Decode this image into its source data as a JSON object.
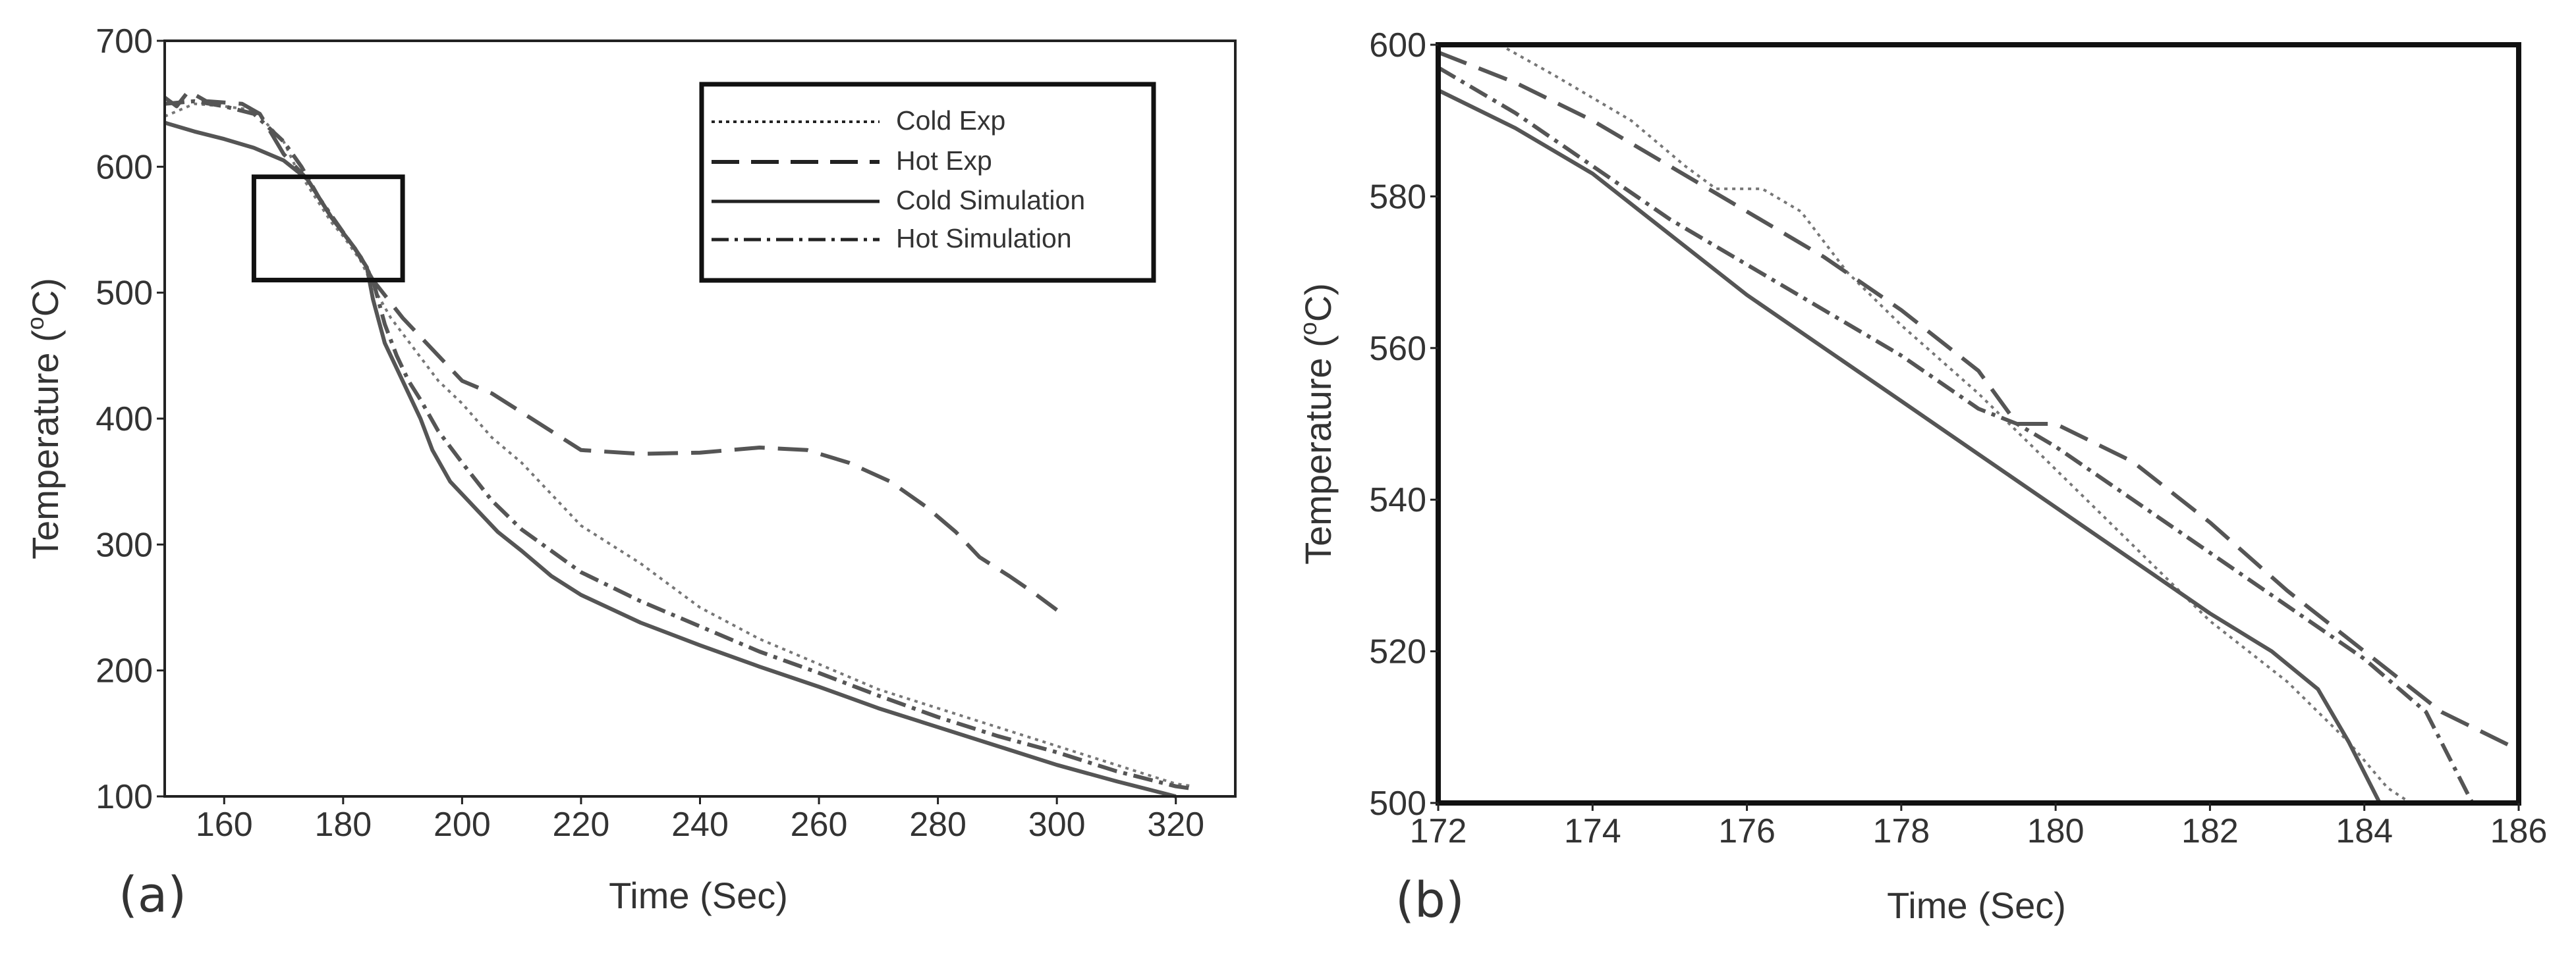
{
  "chart_data": [
    {
      "type": "line",
      "panel_label": "(a)",
      "xlabel": "Time (Sec)",
      "ylabel": "Temperature (°C)",
      "ylabel_parts": {
        "main": "Temperature (",
        "sup": "o",
        "unit": "C)"
      },
      "xlim": [
        150,
        330
      ],
      "ylim": [
        100,
        700
      ],
      "xticks": [
        "160",
        "180",
        "200",
        "220",
        "240",
        "260",
        "280",
        "300",
        "320"
      ],
      "yticks": [
        "100",
        "200",
        "300",
        "400",
        "500",
        "600",
        "700"
      ],
      "legend": {
        "position": "top-right",
        "entries": [
          "Cold Exp",
          "Hot Exp",
          "Cold Simulation",
          "Hot Simulation"
        ]
      },
      "zoom_box": {
        "x": [
          165,
          190
        ],
        "y": [
          510,
          592
        ]
      },
      "series": [
        {
          "name": "Cold Exp",
          "style": "dotted",
          "points": [
            [
              150,
              640
            ],
            [
              155,
              650
            ],
            [
              160,
              648
            ],
            [
              165,
              645
            ],
            [
              170,
              620
            ],
            [
              172,
              600
            ],
            [
              175,
              578
            ],
            [
              178,
              556
            ],
            [
              180,
              545
            ],
            [
              183,
              525
            ],
            [
              185,
              505
            ],
            [
              188,
              480
            ],
            [
              192,
              455
            ],
            [
              196,
              430
            ],
            [
              200,
              412
            ],
            [
              205,
              385
            ],
            [
              210,
              365
            ],
            [
              215,
              340
            ],
            [
              220,
              315
            ],
            [
              230,
              285
            ],
            [
              240,
              250
            ],
            [
              250,
              225
            ],
            [
              260,
              205
            ],
            [
              270,
              185
            ],
            [
              280,
              170
            ],
            [
              290,
              155
            ],
            [
              300,
              140
            ],
            [
              310,
              125
            ],
            [
              320,
              110
            ],
            [
              323,
              108
            ]
          ]
        },
        {
          "name": "Hot Exp",
          "style": "dashed",
          "points": [
            [
              150,
              655
            ],
            [
              152,
              648
            ],
            [
              154,
              660
            ],
            [
              157,
              652
            ],
            [
              163,
              650
            ],
            [
              166,
              642
            ],
            [
              170,
              610
            ],
            [
              174,
              590
            ],
            [
              178,
              560
            ],
            [
              182,
              535
            ],
            [
              185,
              510
            ],
            [
              190,
              480
            ],
            [
              195,
              455
            ],
            [
              200,
              430
            ],
            [
              205,
              420
            ],
            [
              210,
              405
            ],
            [
              215,
              390
            ],
            [
              220,
              375
            ],
            [
              230,
              372
            ],
            [
              240,
              373
            ],
            [
              250,
              377
            ],
            [
              258,
              375
            ],
            [
              265,
              365
            ],
            [
              272,
              350
            ],
            [
              278,
              330
            ],
            [
              283,
              310
            ],
            [
              287,
              290
            ],
            [
              292,
              275
            ],
            [
              296,
              262
            ],
            [
              300,
              248
            ]
          ]
        },
        {
          "name": "Cold Simulation",
          "style": "solid",
          "points": [
            [
              150,
              635
            ],
            [
              155,
              628
            ],
            [
              160,
              622
            ],
            [
              165,
              615
            ],
            [
              170,
              605
            ],
            [
              174,
              590
            ],
            [
              178,
              560
            ],
            [
              182,
              535
            ],
            [
              184,
              520
            ],
            [
              185,
              495
            ],
            [
              187,
              460
            ],
            [
              189,
              440
            ],
            [
              191,
              420
            ],
            [
              193,
              400
            ],
            [
              195,
              375
            ],
            [
              198,
              350
            ],
            [
              202,
              330
            ],
            [
              206,
              310
            ],
            [
              210,
              295
            ],
            [
              215,
              275
            ],
            [
              220,
              260
            ],
            [
              230,
              238
            ],
            [
              240,
              220
            ],
            [
              250,
              203
            ],
            [
              260,
              187
            ],
            [
              270,
              170
            ],
            [
              280,
              155
            ],
            [
              290,
              140
            ],
            [
              300,
              125
            ],
            [
              310,
              112
            ],
            [
              320,
              100
            ]
          ]
        },
        {
          "name": "Hot Simulation",
          "style": "dashdot",
          "points": [
            [
              150,
              650
            ],
            [
              155,
              652
            ],
            [
              160,
              648
            ],
            [
              165,
              642
            ],
            [
              170,
              620
            ],
            [
              173,
              600
            ],
            [
              176,
              575
            ],
            [
              180,
              548
            ],
            [
              183,
              528
            ],
            [
              185,
              510
            ],
            [
              187,
              475
            ],
            [
              189,
              450
            ],
            [
              191,
              430
            ],
            [
              193,
              415
            ],
            [
              196,
              390
            ],
            [
              200,
              365
            ],
            [
              205,
              335
            ],
            [
              210,
              312
            ],
            [
              215,
              295
            ],
            [
              220,
              278
            ],
            [
              230,
              255
            ],
            [
              240,
              235
            ],
            [
              250,
              215
            ],
            [
              260,
              198
            ],
            [
              270,
              180
            ],
            [
              280,
              163
            ],
            [
              290,
              148
            ],
            [
              300,
              135
            ],
            [
              310,
              120
            ],
            [
              320,
              108
            ],
            [
              323,
              106
            ]
          ]
        }
      ]
    },
    {
      "type": "line",
      "panel_label": "(b)",
      "xlabel": "Time (Sec)",
      "ylabel": "Temperature (°C)",
      "ylabel_parts": {
        "main": "Temperature (",
        "sup": "o",
        "unit": "C)"
      },
      "xlim": [
        172,
        186
      ],
      "ylim": [
        500,
        600
      ],
      "xticks": [
        "172",
        "174",
        "176",
        "178",
        "180",
        "182",
        "184",
        "186"
      ],
      "yticks": [
        "500",
        "520",
        "540",
        "560",
        "580",
        "600"
      ],
      "series": [
        {
          "name": "Cold Exp",
          "style": "dotted",
          "points": [
            [
              172.8,
              600
            ],
            [
              173.5,
              596
            ],
            [
              174.5,
              590
            ],
            [
              175.2,
              584
            ],
            [
              175.6,
              581
            ],
            [
              176.2,
              581
            ],
            [
              176.7,
              578
            ],
            [
              177.3,
              570
            ],
            [
              178,
              563
            ],
            [
              179,
              554
            ],
            [
              180,
              544
            ],
            [
              181,
              534
            ],
            [
              182,
              524
            ],
            [
              183,
              516
            ],
            [
              183.8,
              508
            ],
            [
              184.3,
              502
            ],
            [
              184.6,
              500
            ]
          ]
        },
        {
          "name": "Hot Exp",
          "style": "dashed",
          "points": [
            [
              172,
              599
            ],
            [
              173,
              595
            ],
            [
              174,
              590
            ],
            [
              175,
              584
            ],
            [
              176,
              578
            ],
            [
              177,
              572
            ],
            [
              178,
              565
            ],
            [
              179,
              557
            ],
            [
              179.5,
              550
            ],
            [
              180,
              550
            ],
            [
              181,
              545
            ],
            [
              182,
              537
            ],
            [
              183,
              528
            ],
            [
              184,
              520
            ],
            [
              185,
              512
            ],
            [
              186,
              507
            ]
          ]
        },
        {
          "name": "Cold Simulation",
          "style": "solid",
          "points": [
            [
              172,
              594
            ],
            [
              173,
              589
            ],
            [
              174,
              583
            ],
            [
              175,
              575
            ],
            [
              176,
              567
            ],
            [
              177,
              560
            ],
            [
              178,
              553
            ],
            [
              179,
              546
            ],
            [
              180,
              539
            ],
            [
              181,
              532
            ],
            [
              182,
              525
            ],
            [
              182.8,
              520
            ],
            [
              183.4,
              515
            ],
            [
              183.8,
              508
            ],
            [
              184.2,
              500
            ]
          ]
        },
        {
          "name": "Hot Simulation",
          "style": "dashdot",
          "points": [
            [
              172,
              597
            ],
            [
              173,
              591
            ],
            [
              174,
              584
            ],
            [
              175,
              577
            ],
            [
              176,
              571
            ],
            [
              177,
              565
            ],
            [
              178,
              559
            ],
            [
              179,
              552
            ],
            [
              179.5,
              550
            ],
            [
              180,
              547
            ],
            [
              181,
              540
            ],
            [
              182,
              533
            ],
            [
              183,
              526
            ],
            [
              184,
              519
            ],
            [
              184.8,
              512
            ],
            [
              185.3,
              502
            ],
            [
              185.4,
              500
            ]
          ]
        }
      ]
    }
  ]
}
